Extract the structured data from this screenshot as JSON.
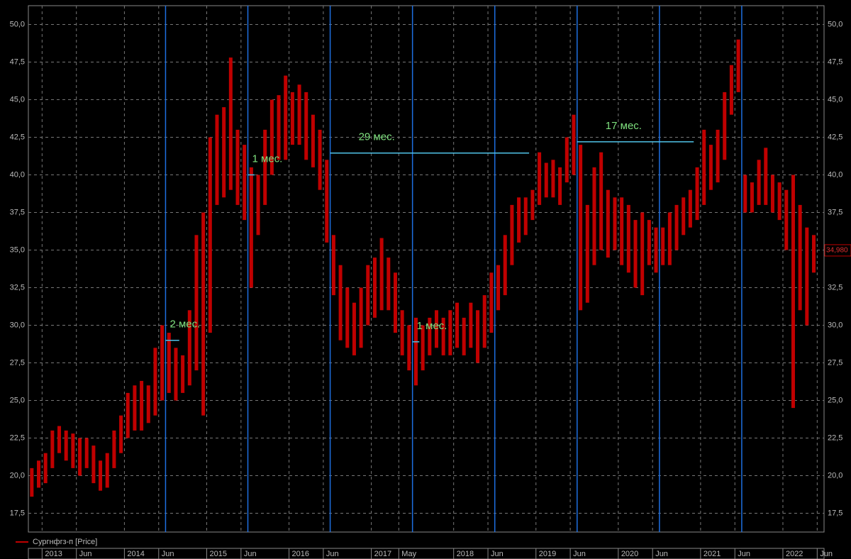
{
  "chart_data": {
    "type": "range",
    "x": [
      "2012-11",
      "2012-12",
      "2013-01",
      "2013-02",
      "2013-03",
      "2013-04",
      "2013-05",
      "2013-06",
      "2013-07",
      "2013-08",
      "2013-09",
      "2013-10",
      "2013-11",
      "2013-12",
      "2014-01",
      "2014-02",
      "2014-03",
      "2014-04",
      "2014-05",
      "2014-06",
      "2014-07",
      "2014-08",
      "2014-09",
      "2014-10",
      "2014-11",
      "2014-12",
      "2015-01",
      "2015-02",
      "2015-03",
      "2015-04",
      "2015-05",
      "2015-06",
      "2015-07",
      "2015-08",
      "2015-09",
      "2015-10",
      "2015-11",
      "2015-12",
      "2016-01",
      "2016-02",
      "2016-03",
      "2016-04",
      "2016-05",
      "2016-06",
      "2016-07",
      "2016-08",
      "2016-09",
      "2016-10",
      "2016-11",
      "2016-12",
      "2017-01",
      "2017-02",
      "2017-03",
      "2017-04",
      "2017-05",
      "2017-06",
      "2017-07",
      "2017-08",
      "2017-09",
      "2017-10",
      "2017-11",
      "2017-12",
      "2018-01",
      "2018-02",
      "2018-03",
      "2018-04",
      "2018-05",
      "2018-06",
      "2018-07",
      "2018-08",
      "2018-09",
      "2018-10",
      "2018-11",
      "2018-12",
      "2019-01",
      "2019-02",
      "2019-03",
      "2019-04",
      "2019-05",
      "2019-06",
      "2019-07",
      "2019-08",
      "2019-09",
      "2019-10",
      "2019-11",
      "2019-12",
      "2020-01",
      "2020-02",
      "2020-03",
      "2020-04",
      "2020-05",
      "2020-06",
      "2020-07",
      "2020-08",
      "2020-09",
      "2020-10",
      "2020-11",
      "2020-12",
      "2021-01",
      "2021-02",
      "2021-03",
      "2021-04",
      "2021-05",
      "2021-06",
      "2021-07",
      "2021-08",
      "2021-09",
      "2021-10",
      "2021-11",
      "2021-12",
      "2022-01",
      "2022-02",
      "2022-03",
      "2022-04",
      "2022-05"
    ],
    "series": [
      {
        "name": "Сургнфгз-п [Price]",
        "color": "#c00000",
        "low": [
          18.6,
          19.2,
          19.5,
          20.5,
          21.5,
          21,
          20.5,
          20,
          20.5,
          19.5,
          19,
          19.2,
          20.5,
          21.5,
          22.5,
          23,
          23,
          23.5,
          24,
          25,
          25.5,
          25,
          25.5,
          26,
          27,
          24,
          29.5,
          38,
          38.5,
          39,
          38,
          37,
          32.5,
          36,
          38,
          40,
          41,
          41,
          42,
          42,
          41,
          40.5,
          39,
          35.5,
          32,
          29,
          28.5,
          28,
          28.5,
          30,
          30.5,
          31,
          31,
          29.5,
          28,
          27,
          26,
          27,
          28,
          28.5,
          28,
          28,
          28.5,
          28,
          28.5,
          27.5,
          28.5,
          29.5,
          31,
          32,
          34,
          35.5,
          36,
          37,
          38,
          38.5,
          38.5,
          38,
          39.5,
          40,
          31,
          31.5,
          34,
          35,
          34.5,
          35,
          34,
          33.5,
          32.5,
          32,
          34,
          33.5,
          34,
          34,
          35,
          36,
          36.5,
          37,
          38,
          39,
          39.5,
          41,
          44,
          45.5,
          37.5,
          37.5,
          38,
          38,
          37.5,
          37,
          35,
          24.5,
          31,
          30,
          33.5
        ],
        "high": [
          20.5,
          21,
          21.5,
          23,
          23.3,
          23,
          22.8,
          22.5,
          22.5,
          22,
          21,
          21.5,
          23,
          24,
          25.5,
          26,
          26.3,
          26,
          28.5,
          30,
          29.5,
          28.5,
          28,
          31,
          36,
          37.5,
          42.5,
          44,
          44.5,
          47.8,
          43,
          42,
          40.5,
          40,
          43,
          45,
          45.3,
          46.6,
          45.5,
          46,
          45.5,
          44,
          43,
          41,
          36,
          34,
          32.5,
          31.5,
          32.5,
          34,
          34.5,
          35.8,
          34.5,
          33.5,
          31,
          30,
          30.5,
          30,
          30.5,
          31,
          30.5,
          31,
          31.5,
          30.5,
          31.5,
          31,
          32,
          33.5,
          34,
          36,
          38,
          38.5,
          38.5,
          39,
          41.5,
          40.8,
          41,
          40.5,
          42.5,
          44,
          42,
          38,
          40.5,
          41.5,
          39,
          38.5,
          38.5,
          38,
          37,
          37.5,
          37,
          36.5,
          36.5,
          37.5,
          38,
          38.5,
          39,
          40.5,
          43,
          42,
          43,
          45.5,
          47.3,
          49,
          40,
          39.5,
          41,
          41.8,
          40,
          39.5,
          39,
          40,
          38,
          36.5,
          36
        ]
      }
    ],
    "last_value": {
      "value": 34.98,
      "label": "34,980"
    },
    "vlines": [
      "2014-07",
      "2015-07",
      "2016-07",
      "2017-07",
      "2018-07",
      "2019-07",
      "2020-07",
      "2021-07"
    ],
    "annotations": [
      {
        "text": "2 мес.",
        "start": "2014-07",
        "end": "2014-09",
        "value": 29.0
      },
      {
        "text": "1 мес.",
        "start": "2015-07",
        "end": "2015-08",
        "value": 40.0
      },
      {
        "text": "29 мес.",
        "start": "2016-07",
        "end": "2018-12",
        "value": 41.45
      },
      {
        "text": "1 мес.",
        "start": "2017-07",
        "end": "2017-08",
        "value": 28.9
      },
      {
        "text": "17 мес.",
        "start": "2019-07",
        "end": "2020-12",
        "value": 42.2
      }
    ],
    "xlim": [
      "2012-11",
      "2022-07"
    ],
    "xticks": [
      {
        "value": "2013-01",
        "label": "2013"
      },
      {
        "value": "2013-06",
        "label": "Jun"
      },
      {
        "value": "2014-01",
        "label": "2014"
      },
      {
        "value": "2014-06",
        "label": "Jun"
      },
      {
        "value": "2015-01",
        "label": "2015"
      },
      {
        "value": "2015-06",
        "label": "Jun"
      },
      {
        "value": "2016-01",
        "label": "2016"
      },
      {
        "value": "2016-06",
        "label": "Jun"
      },
      {
        "value": "2017-01",
        "label": "2017"
      },
      {
        "value": "2017-05",
        "label": "May"
      },
      {
        "value": "2018-01",
        "label": "2018"
      },
      {
        "value": "2018-06",
        "label": "Jun"
      },
      {
        "value": "2019-01",
        "label": "2019"
      },
      {
        "value": "2019-06",
        "label": "Jun"
      },
      {
        "value": "2020-01",
        "label": "2020"
      },
      {
        "value": "2020-06",
        "label": "Jun"
      },
      {
        "value": "2021-01",
        "label": "2021"
      },
      {
        "value": "2021-06",
        "label": "Jun"
      },
      {
        "value": "2022-01",
        "label": "2022"
      },
      {
        "value": "2022-06",
        "label": "Jun"
      }
    ],
    "ylim": [
      16.25,
      51.25
    ],
    "yticks": [
      {
        "value": 17.5,
        "label": "17,5"
      },
      {
        "value": 20,
        "label": "20,0"
      },
      {
        "value": 22.5,
        "label": "22,5"
      },
      {
        "value": 25,
        "label": "25,0"
      },
      {
        "value": 27.5,
        "label": "27,5"
      },
      {
        "value": 30,
        "label": "30,0"
      },
      {
        "value": 32.5,
        "label": "32,5"
      },
      {
        "value": 35,
        "label": "35,0"
      },
      {
        "value": 37.5,
        "label": "37,5"
      },
      {
        "value": 40,
        "label": "40,0"
      },
      {
        "value": 42.5,
        "label": "42,5"
      },
      {
        "value": 45,
        "label": "45,0"
      },
      {
        "value": 47.5,
        "label": "47,5"
      },
      {
        "value": 50,
        "label": "50,0"
      }
    ],
    "grid": true
  }
}
